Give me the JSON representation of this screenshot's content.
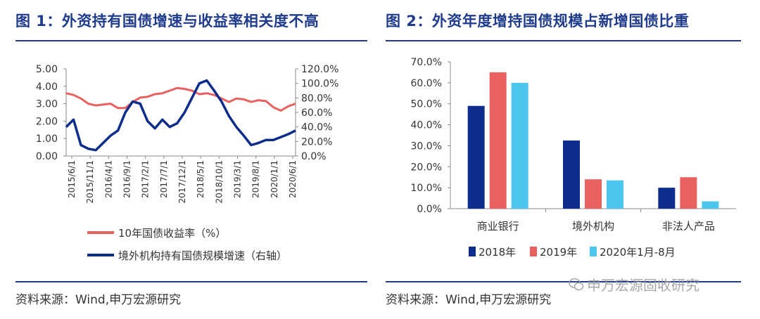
{
  "left_panel": {
    "title": "图 1：外资持有国债增速与收益率相关度不高",
    "source": "资料来源：Wind,申万宏源研究"
  },
  "right_panel": {
    "title": "图 2：外资年度增持国债规模占新增国债比重",
    "source": "资料来源：Wind,申万宏源研究"
  },
  "watermark": {
    "text": "申万宏源固收研究",
    "icon": "wechat-icon"
  },
  "chart_data": [
    {
      "type": "line",
      "title": "图 1：外资持有国债增速与收益率相关度不高",
      "x_tick_labels": [
        "2015/6/1",
        "2015/11/1",
        "2016/4/1",
        "2016/9/1",
        "2017/2/1",
        "2017/7/1",
        "2017/12/1",
        "2018/5/1",
        "2018/10/1",
        "2019/3/1",
        "2019/8/1",
        "2020/1/1",
        "2020/6/1"
      ],
      "y_left": {
        "ticks": [
          "0.00",
          "1.00",
          "2.00",
          "3.00",
          "4.00",
          "5.00"
        ],
        "range": [
          0,
          5
        ]
      },
      "y_right": {
        "ticks": [
          "0.0%",
          "20.0%",
          "40.0%",
          "60.0%",
          "80.0%",
          "100.0%",
          "120.0%"
        ],
        "range": [
          0,
          120
        ]
      },
      "grid": false,
      "legend_position": "bottom",
      "series": [
        {
          "name": "10年国债收益率（%）",
          "axis": "left",
          "color": "#e8615f",
          "x": [
            "2015/6",
            "2015/8",
            "2015/10",
            "2015/12",
            "2016/2",
            "2016/4",
            "2016/6",
            "2016/8",
            "2016/10",
            "2016/12",
            "2017/2",
            "2017/4",
            "2017/6",
            "2017/8",
            "2017/10",
            "2017/12",
            "2018/2",
            "2018/4",
            "2018/6",
            "2018/8",
            "2018/10",
            "2018/12",
            "2019/2",
            "2019/4",
            "2019/6",
            "2019/8",
            "2019/10",
            "2019/12",
            "2020/2",
            "2020/4",
            "2020/6",
            "2020/8"
          ],
          "values": [
            3.6,
            3.5,
            3.3,
            3.0,
            2.9,
            2.95,
            3.0,
            2.75,
            2.75,
            3.1,
            3.35,
            3.4,
            3.55,
            3.6,
            3.75,
            3.9,
            3.85,
            3.75,
            3.55,
            3.6,
            3.5,
            3.3,
            3.1,
            3.3,
            3.25,
            3.1,
            3.2,
            3.15,
            2.8,
            2.6,
            2.85,
            3.0
          ]
        },
        {
          "name": "境外机构持有国债规模增速（右轴）",
          "axis": "right",
          "color": "#0d2d8c",
          "x": [
            "2015/6",
            "2015/8",
            "2015/10",
            "2015/12",
            "2016/2",
            "2016/4",
            "2016/6",
            "2016/8",
            "2016/10",
            "2016/12",
            "2017/2",
            "2017/4",
            "2017/6",
            "2017/8",
            "2017/10",
            "2017/12",
            "2018/2",
            "2018/4",
            "2018/6",
            "2018/8",
            "2018/10",
            "2018/12",
            "2019/2",
            "2019/4",
            "2019/6",
            "2019/8",
            "2019/10",
            "2019/12",
            "2020/2",
            "2020/4",
            "2020/6",
            "2020/8"
          ],
          "values": [
            40,
            50,
            15,
            10,
            8,
            18,
            28,
            35,
            60,
            75,
            72,
            48,
            38,
            50,
            40,
            45,
            60,
            80,
            100,
            104,
            90,
            75,
            55,
            40,
            28,
            15,
            18,
            22,
            22,
            26,
            30,
            35
          ]
        }
      ]
    },
    {
      "type": "bar",
      "title": "图 2：外资年度增持国债规模占新增国债比重",
      "categories": [
        "商业银行",
        "境外机构",
        "非法人产品"
      ],
      "y_ticks": [
        "0.0%",
        "10.0%",
        "20.0%",
        "30.0%",
        "40.0%",
        "50.0%",
        "60.0%",
        "70.0%"
      ],
      "ylim": [
        0,
        70
      ],
      "grid": false,
      "legend_position": "bottom",
      "series": [
        {
          "name": "2018年",
          "color": "#0d2d8c",
          "values": [
            49,
            32.5,
            10
          ]
        },
        {
          "name": "2019年",
          "color": "#e8615f",
          "values": [
            65,
            14,
            15
          ]
        },
        {
          "name": "2020年1月-8月",
          "color": "#4dc6ef",
          "values": [
            60,
            13.5,
            3.5
          ]
        }
      ]
    }
  ]
}
